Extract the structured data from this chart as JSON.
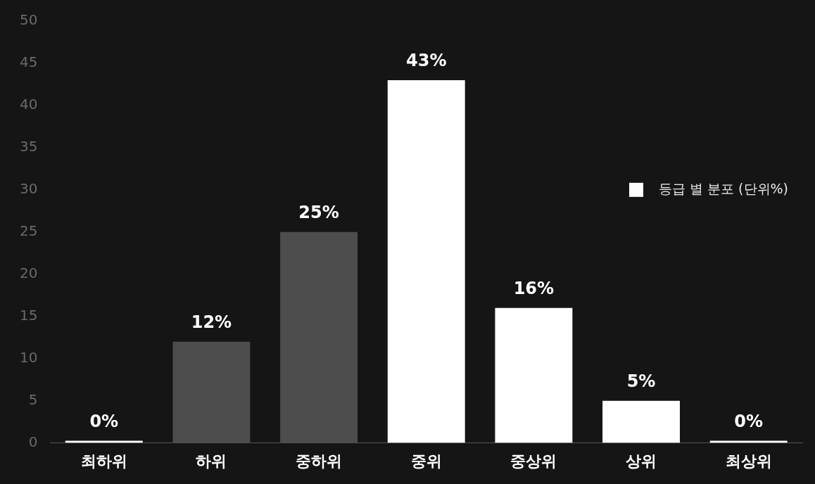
{
  "chart_data": {
    "type": "bar",
    "categories": [
      "최하위",
      "하위",
      "중하위",
      "중위",
      "중상위",
      "상위",
      "최상위"
    ],
    "series": [
      {
        "name": "등급 별 분포 (단위%)",
        "color": "#ffffff",
        "colors": [
          "#ffffff",
          "#4d4d4d",
          "#4d4d4d",
          "#ffffff",
          "#ffffff",
          "#ffffff",
          "#ffffff"
        ],
        "values": [
          0,
          12,
          25,
          43,
          16,
          5,
          0
        ],
        "value_labels": [
          "0%",
          "12%",
          "25%",
          "43%",
          "16%",
          "5%",
          "0%"
        ]
      }
    ],
    "ylim": [
      0,
      50
    ],
    "yticks": [
      0,
      5,
      10,
      15,
      20,
      25,
      30,
      35,
      40,
      45,
      50
    ],
    "grid": false,
    "legend": "right"
  }
}
